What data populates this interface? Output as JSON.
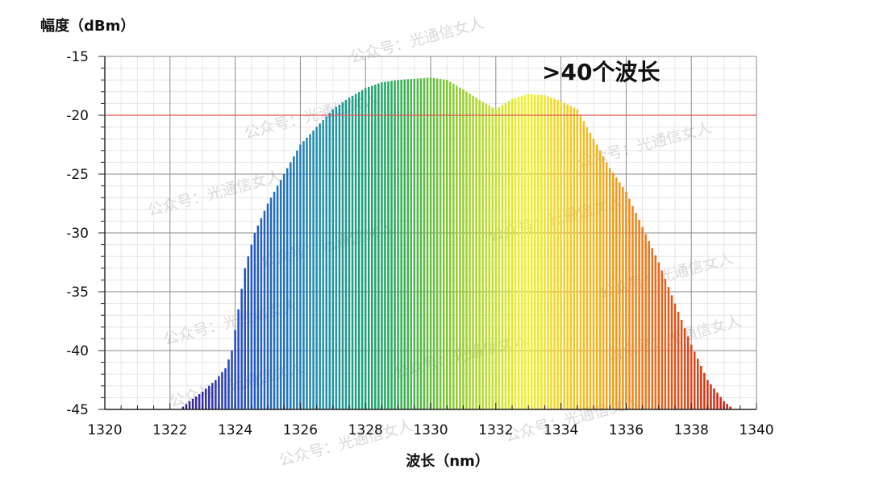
{
  "chart_data": {
    "type": "bar",
    "ylabel": "幅度（dBm）",
    "xlabel": "波长（nm）",
    "xlim": [
      1320,
      1340
    ],
    "ylim": [
      -45,
      -15
    ],
    "x_ticks": [
      "1320",
      "1322",
      "1324",
      "1326",
      "1328",
      "1330",
      "1332",
      "1334",
      "1336",
      "1338",
      "1340"
    ],
    "y_ticks": [
      "-15",
      "-20",
      "-25",
      "-30",
      "-35",
      "-40",
      "-45"
    ],
    "grid": true,
    "reference_line": {
      "y": -20,
      "color": "#e05555"
    },
    "annotation": ">40个波长",
    "watermark": "公众号：光通信女人",
    "envelope": [
      [
        1322.3,
        -45
      ],
      [
        1322.6,
        -44.3
      ],
      [
        1323.0,
        -43.5
      ],
      [
        1323.4,
        -42.5
      ],
      [
        1323.7,
        -41.5
      ],
      [
        1323.9,
        -40.0
      ],
      [
        1324.1,
        -36.5
      ],
      [
        1324.3,
        -33.0
      ],
      [
        1324.6,
        -30.0
      ],
      [
        1325.0,
        -27.5
      ],
      [
        1325.5,
        -25.0
      ],
      [
        1326.0,
        -22.5
      ],
      [
        1326.5,
        -21.0
      ],
      [
        1327.0,
        -19.5
      ],
      [
        1327.5,
        -18.5
      ],
      [
        1328.0,
        -17.7
      ],
      [
        1328.5,
        -17.2
      ],
      [
        1329.0,
        -17.0
      ],
      [
        1329.5,
        -16.9
      ],
      [
        1330.0,
        -16.8
      ],
      [
        1330.5,
        -17.0
      ],
      [
        1331.0,
        -17.8
      ],
      [
        1331.5,
        -18.7
      ],
      [
        1332.0,
        -19.5
      ],
      [
        1332.5,
        -18.6
      ],
      [
        1333.0,
        -18.2
      ],
      [
        1333.5,
        -18.3
      ],
      [
        1334.0,
        -18.8
      ],
      [
        1334.5,
        -19.5
      ],
      [
        1335.0,
        -22.0
      ],
      [
        1335.5,
        -24.5
      ],
      [
        1336.0,
        -26.5
      ],
      [
        1336.5,
        -29.5
      ],
      [
        1337.0,
        -32.5
      ],
      [
        1337.5,
        -36.0
      ],
      [
        1338.0,
        -39.5
      ],
      [
        1338.5,
        -42.5
      ],
      [
        1339.0,
        -44.3
      ],
      [
        1339.3,
        -45
      ]
    ],
    "colormap": [
      "#3d1c8f",
      "#2255c4",
      "#1f8fb0",
      "#21a85e",
      "#8fcc2a",
      "#f2f224",
      "#f2b41a",
      "#e8601c",
      "#c41a12"
    ]
  }
}
